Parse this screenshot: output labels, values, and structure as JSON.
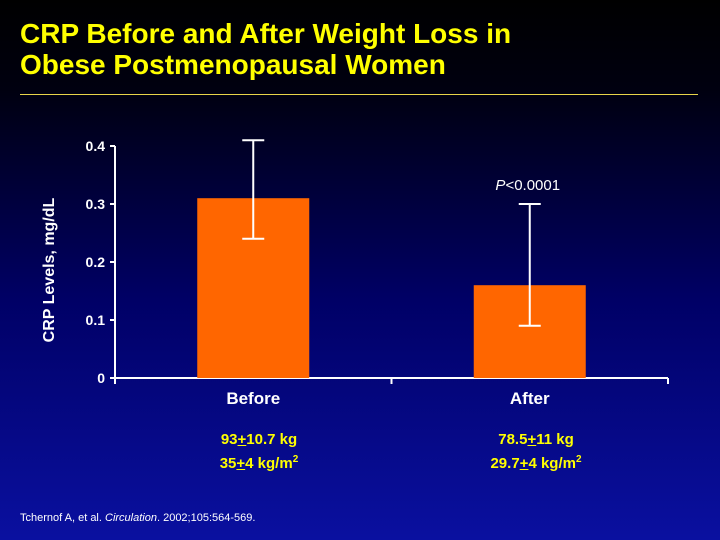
{
  "slide": {
    "title_line1": "CRP Before and After Weight Loss in",
    "title_line2": "Obese Postmenopausal Women"
  },
  "chart_data": {
    "type": "bar",
    "categories": [
      "Before",
      "After"
    ],
    "values": [
      0.31,
      0.16
    ],
    "error_bars": [
      {
        "low": 0.24,
        "high": 0.41
      },
      {
        "low": 0.09,
        "high": 0.3
      }
    ],
    "ylabel": "CRP Levels, mg/dL",
    "ylim": [
      0,
      0.4
    ],
    "yticks": [
      0,
      0.1,
      0.2,
      0.3,
      0.4
    ],
    "ytick_labels": [
      "0",
      "0.1",
      "0.2",
      "0.3",
      "0.4"
    ],
    "annotation": {
      "p_italic": "P",
      "rest": "<0.0001",
      "category": "After"
    },
    "grid": false,
    "legend": "none",
    "bar_color": "#ff6600",
    "text_color": "#ffffff"
  },
  "stats": [
    {
      "weight_a": "93",
      "weight_pm": "+",
      "weight_b": "10.7 kg",
      "bmi_a": "35",
      "bmi_pm": "+",
      "bmi_b": "4 kg/m",
      "bmi_sup": "2"
    },
    {
      "weight_a": "78.5",
      "weight_pm": "+",
      "weight_b": "11 kg",
      "bmi_a": "29.7",
      "bmi_pm": "+",
      "bmi_b": "4 kg/m",
      "bmi_sup": "2"
    }
  ],
  "citation": {
    "authors": "Tchernof A, et al. ",
    "journal": "Circulation",
    "rest": ". 2002;105:564-569."
  }
}
